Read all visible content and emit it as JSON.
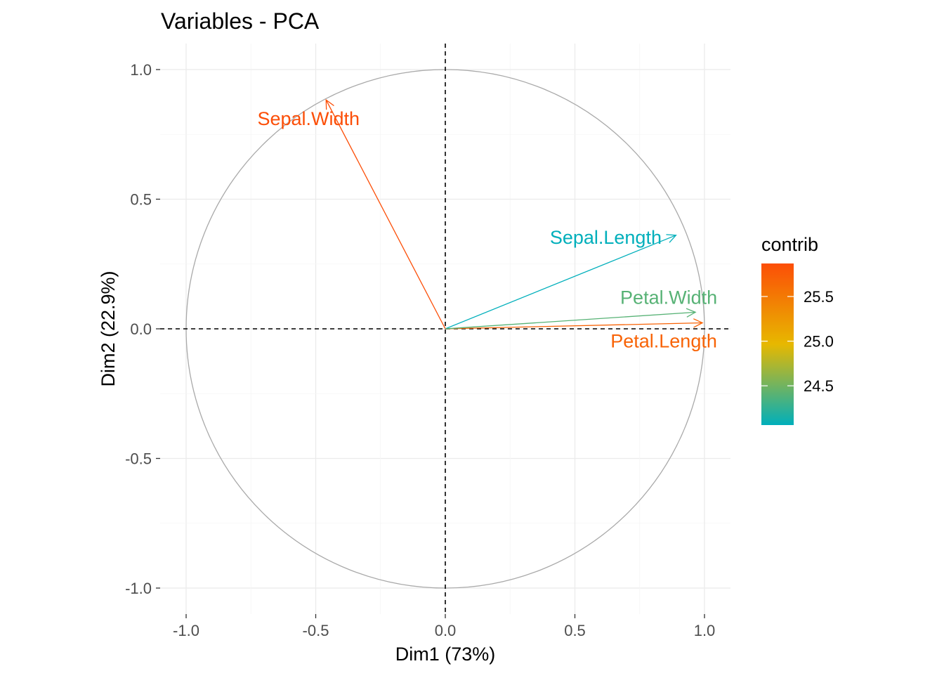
{
  "chart_data": {
    "type": "scatter",
    "subtype": "pca-correlation-circle",
    "title": "Variables - PCA",
    "xlabel": "Dim1 (73%)",
    "ylabel": "Dim2 (22.9%)",
    "xlim": [
      -1.0,
      1.0
    ],
    "ylim": [
      -1.0,
      1.0
    ],
    "xticks": [
      "-1.0",
      "-0.5",
      "0.0",
      "0.5",
      "1.0"
    ],
    "yticks": [
      "-1.0",
      "-0.5",
      "0.0",
      "0.5",
      "1.0"
    ],
    "grid": true,
    "variables": [
      {
        "name": "Sepal.Length",
        "x": 0.89,
        "y": 0.361,
        "contrib": 24.06
      },
      {
        "name": "Sepal.Width",
        "x": -0.46,
        "y": 0.883,
        "contrib": 25.87
      },
      {
        "name": "Petal.Length",
        "x": 0.992,
        "y": 0.023,
        "contrib": 25.69
      },
      {
        "name": "Petal.Width",
        "x": 0.965,
        "y": 0.064,
        "contrib": 24.4
      }
    ],
    "legend": {
      "title": "contrib",
      "placement": "right",
      "range": [
        24.06,
        25.87
      ],
      "ticks": [
        "24.5",
        "25.0",
        "25.5"
      ],
      "colors": [
        "#00AFBB",
        "#E7B800",
        "#FC4E07"
      ]
    },
    "circle_color": "#A9A9A9"
  }
}
